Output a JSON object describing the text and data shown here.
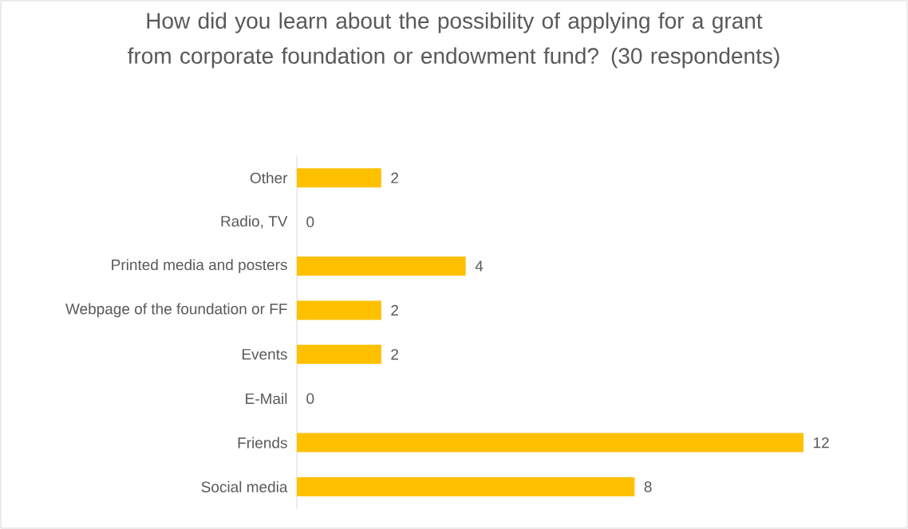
{
  "chart_data": {
    "type": "bar",
    "orientation": "horizontal",
    "title": "How did you learn about the possibility of applying for a grant from corporate foundation or endowment fund? (30 respondents)",
    "categories": [
      "Other",
      "Radio, TV",
      "Printed media and posters",
      "Webpage of the foundation or FF",
      "Events",
      "E-Mail",
      "Friends",
      "Social media"
    ],
    "values": [
      2,
      0,
      4,
      2,
      2,
      0,
      12,
      8
    ],
    "color": "#ffc000",
    "data_labels": true,
    "grid": false
  }
}
